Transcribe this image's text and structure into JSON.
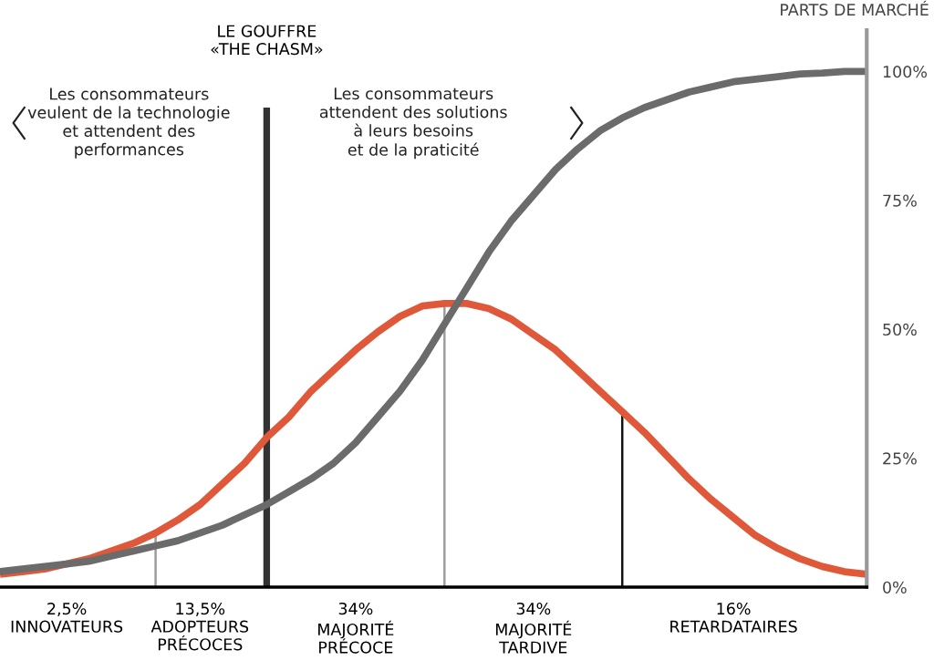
{
  "chart_data": {
    "type": "line",
    "ylabel": "PARTS DE MARCHÉ",
    "categories": [
      null,
      null,
      null,
      "2,5%\nINNOVATEURS",
      null,
      null,
      null,
      null,
      null,
      "13,5%\nADOPTEURS\nPRÉCOCES",
      null,
      null,
      null,
      null,
      null,
      null,
      "34%\nMAJORITÉ\nPRÉCOCE",
      null,
      null,
      null,
      null,
      null,
      null,
      null,
      "34%\nMAJORITÉ\nTARDIVE",
      null,
      null,
      null,
      null,
      null,
      null,
      null,
      null,
      "16%\nRETARDATAIRES",
      null,
      null,
      null,
      null,
      null,
      null
    ],
    "ylim": [
      0,
      108
    ],
    "yticks": [
      {
        "value": 0,
        "label": "0%"
      },
      {
        "value": 25,
        "label": "25%"
      },
      {
        "value": 50,
        "label": "50%"
      },
      {
        "value": 75,
        "label": "75%"
      },
      {
        "value": 100,
        "label": "100%"
      }
    ],
    "series": [
      {
        "color": "#e0583a",
        "values": [
          2.5,
          3,
          3.5,
          4.5,
          5.5,
          7,
          8.5,
          10.5,
          13,
          16,
          20,
          24,
          29,
          33,
          38,
          42,
          46,
          49.5,
          52.5,
          54.5,
          55,
          55,
          54,
          52,
          49,
          46,
          42,
          38,
          34,
          30,
          25.5,
          21,
          17,
          13.5,
          10,
          7.5,
          5.5,
          4,
          3,
          2.5
        ]
      },
      {
        "color": "#6b6b6b",
        "values": [
          3,
          3.5,
          4,
          4.5,
          5,
          6,
          7,
          8,
          9,
          10.5,
          12,
          14,
          16,
          18.5,
          21,
          24,
          28,
          33,
          38,
          44,
          51,
          58,
          65,
          71,
          76,
          81,
          85,
          88.5,
          91,
          93,
          94.5,
          96,
          97,
          98,
          98.5,
          99,
          99.5,
          99.7,
          100,
          100
        ]
      },
      {
        "type": "bar",
        "colors": [
          null,
          null,
          null,
          null,
          null,
          null,
          null,
          "#9a9a9a",
          null,
          null,
          null,
          null,
          null,
          null,
          null,
          null,
          null,
          null,
          null,
          null,
          "#9a9a9a",
          null,
          null,
          null,
          null,
          null,
          null,
          null,
          "#111111",
          null,
          null,
          null,
          null,
          null,
          null,
          null,
          null,
          null,
          null,
          null
        ],
        "values": [
          null,
          null,
          null,
          null,
          null,
          null,
          null,
          10.5,
          null,
          null,
          null,
          null,
          null,
          null,
          null,
          null,
          null,
          null,
          null,
          null,
          55,
          null,
          null,
          null,
          null,
          null,
          null,
          null,
          34,
          null,
          null,
          null,
          null,
          null,
          null,
          null,
          null,
          null,
          null,
          null
        ]
      },
      {
        "type": "bar",
        "color": "#333333",
        "values": [
          null,
          null,
          null,
          null,
          null,
          null,
          null,
          null,
          null,
          null,
          null,
          null,
          93,
          null,
          null,
          null,
          null,
          null,
          null,
          null,
          null,
          null,
          null,
          null,
          null,
          null,
          null,
          null,
          null,
          null,
          null,
          null,
          null,
          null,
          null,
          null,
          null,
          null,
          null,
          null
        ]
      }
    ],
    "annotations": [
      "LE GOUFFRE\n«THE CHASM»",
      "Les consommateurs\nveulent de la technologie\net attendent des\nperformances",
      "Les consommateurs\nattendent des solutions\nà leurs besoins\net de la praticité"
    ],
    "grid": false,
    "legend": false
  }
}
